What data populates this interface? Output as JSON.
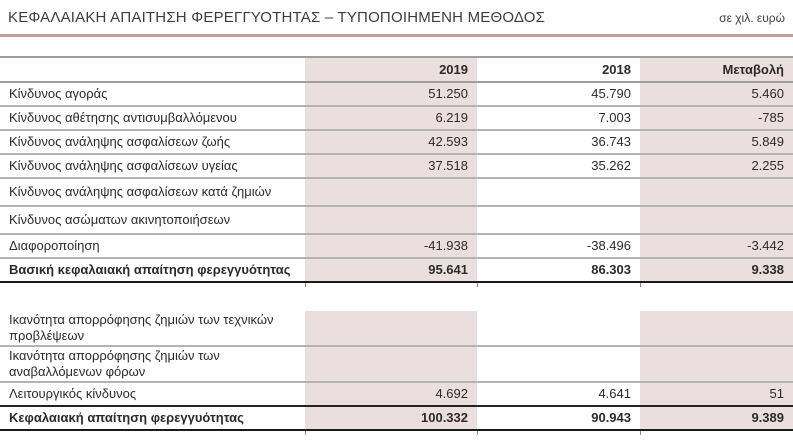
{
  "title": "ΚΕΦΑΛΑΙΑΚΗ ΑΠΑΙΤΗΣΗ ΦΕΡΕΓΓΥΟΤΗΤΑΣ – ΤΥΠΟΠΟΙΗΜΕΝΗ ΜΕΘΟΔΟΣ",
  "unit_note": "σε χιλ. ευρώ",
  "columns": [
    "2019",
    "2018",
    "Μεταβολή"
  ],
  "colors": {
    "highlight_column_bg": "#ebdede",
    "title_rule": "#c49c9c",
    "grid_line": "#b3b3b3",
    "heavy_line": "#1a1a1a"
  },
  "table1": {
    "rows": [
      {
        "label": "Κίνδυνος αγοράς",
        "values": [
          "51.250",
          "45.790",
          "5.460"
        ],
        "bold": false
      },
      {
        "label": "Κίνδυνος αθέτησης αντισυμβαλλόμενου",
        "values": [
          "6.219",
          "7.003",
          "-785"
        ],
        "bold": false
      },
      {
        "label": "Κίνδυνος ανάληψης ασφαλίσεων ζωής",
        "values": [
          "42.593",
          "36.743",
          "5.849"
        ],
        "bold": false
      },
      {
        "label": "Κίνδυνος ανάληψης ασφαλίσεων υγείας",
        "values": [
          "37.518",
          "35.262",
          "2.255"
        ],
        "bold": false
      },
      {
        "label": "Κίνδυνος ανάληψης ασφαλίσεων κατά ζημιών",
        "values": [
          "",
          "",
          ""
        ],
        "bold": false
      },
      {
        "label": "Κίνδυνος ασώματων ακινητοποιήσεων",
        "values": [
          "",
          "",
          ""
        ],
        "bold": false
      },
      {
        "label": "Διαφοροποίηση",
        "values": [
          "-41.938",
          "-38.496",
          "-3.442"
        ],
        "bold": false
      },
      {
        "label": "Βασική κεφαλαιακή απαίτηση φερεγγυότητας",
        "values": [
          "95.641",
          "86.303",
          "9.338"
        ],
        "bold": true
      }
    ]
  },
  "table2": {
    "rows": [
      {
        "label": "Ικανότητα απορρόφησης ζημιών των τεχνικών προβλέψεων",
        "values": [
          "",
          "",
          ""
        ],
        "bold": false
      },
      {
        "label": "Ικανότητα απορρόφησης ζημιών των αναβαλλόμενων φόρων",
        "values": [
          "",
          "",
          ""
        ],
        "bold": false
      },
      {
        "label": "Λειτουργικός κίνδυνος",
        "values": [
          "4.692",
          "4.641",
          "51"
        ],
        "bold": false
      },
      {
        "label": "Κεφαλαιακή απαίτηση φερεγγυότητας",
        "values": [
          "100.332",
          "90.943",
          "9.389"
        ],
        "bold": true
      }
    ]
  }
}
